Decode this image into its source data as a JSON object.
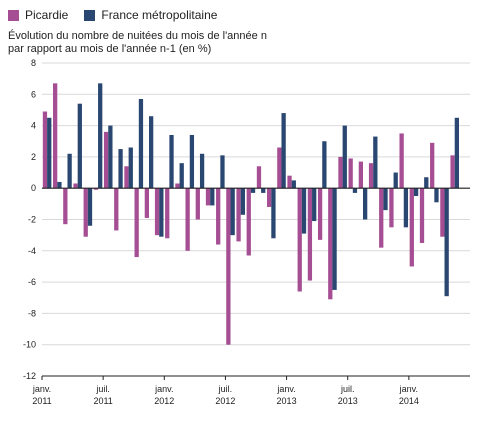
{
  "legend": [
    {
      "name": "Picardie",
      "color": "#a64e93"
    },
    {
      "name": "France métropolitaine",
      "color": "#2a4771"
    }
  ],
  "subtitle_line1": "Évolution du nombre de nuitées du mois de l'année n",
  "subtitle_line2": "par rapport au mois de l'année n-1 (en %)",
  "chart_data": {
    "type": "bar",
    "ylim": [
      -12,
      8
    ],
    "yticks": [
      8,
      6,
      4,
      2,
      0,
      -2,
      -4,
      -6,
      -8,
      -10,
      -12
    ],
    "grid": true,
    "categories": [
      "janv. 2011",
      "févr. 2011",
      "mars 2011",
      "avr. 2011",
      "mai 2011",
      "juin 2011",
      "juil. 2011",
      "août 2011",
      "sept. 2011",
      "oct. 2011",
      "nov. 2011",
      "déc. 2011",
      "janv. 2012",
      "févr. 2012",
      "mars 2012",
      "avr. 2012",
      "mai 2012",
      "juin 2012",
      "juil. 2012",
      "août 2012",
      "sept. 2012",
      "oct. 2012",
      "nov. 2012",
      "déc. 2012",
      "janv. 2013",
      "févr. 2013",
      "mars 2013",
      "avr. 2013",
      "mai 2013",
      "juin 2013",
      "juil. 2013",
      "août 2013",
      "sept. 2013",
      "oct. 2013",
      "nov. 2013",
      "déc. 2013",
      "janv. 2014",
      "févr. 2014",
      "mars 2014",
      "avr. 2014",
      "mai 2014",
      "juin 2014"
    ],
    "xtick_labels": [
      {
        "line1": "janv.",
        "line2": "2011",
        "index": 0
      },
      {
        "line1": "juil.",
        "line2": "2011",
        "index": 6
      },
      {
        "line1": "janv.",
        "line2": "2012",
        "index": 12
      },
      {
        "line1": "juil.",
        "line2": "2012",
        "index": 18
      },
      {
        "line1": "janv.",
        "line2": "2013",
        "index": 24
      },
      {
        "line1": "juil.",
        "line2": "2013",
        "index": 30
      },
      {
        "line1": "janv.",
        "line2": "2014",
        "index": 36
      }
    ],
    "series": [
      {
        "name": "Picardie",
        "color": "#a64e93",
        "values": [
          4.9,
          6.7,
          -2.3,
          0.3,
          -3.1,
          -0.1,
          3.6,
          -2.7,
          1.4,
          -4.4,
          -1.9,
          -3.0,
          -3.2,
          0.3,
          -4.0,
          -2.0,
          -1.1,
          -3.6,
          -10.0,
          -3.4,
          -4.3,
          1.4,
          -1.2,
          2.6,
          0.8,
          -6.6,
          -5.9,
          -3.3,
          -7.1,
          2.0,
          1.9,
          1.7,
          1.6,
          -3.8,
          -2.5,
          3.5,
          -5.0,
          -3.5,
          2.9,
          -3.1,
          2.1,
          0.0
        ]
      },
      {
        "name": "France métropolitaine",
        "color": "#2a4771",
        "values": [
          4.5,
          0.4,
          2.2,
          5.4,
          -2.4,
          6.7,
          4.0,
          2.5,
          2.6,
          5.7,
          4.6,
          -3.1,
          3.4,
          1.6,
          3.4,
          2.2,
          -1.1,
          2.1,
          -3.0,
          -1.7,
          -0.3,
          -0.3,
          -3.2,
          4.8,
          0.5,
          -2.9,
          -2.1,
          3.0,
          -6.5,
          4.0,
          -0.3,
          -2.0,
          3.3,
          -1.4,
          1.0,
          -2.5,
          -0.5,
          0.7,
          -0.9,
          -6.9,
          4.5,
          0.0
        ]
      }
    ]
  }
}
